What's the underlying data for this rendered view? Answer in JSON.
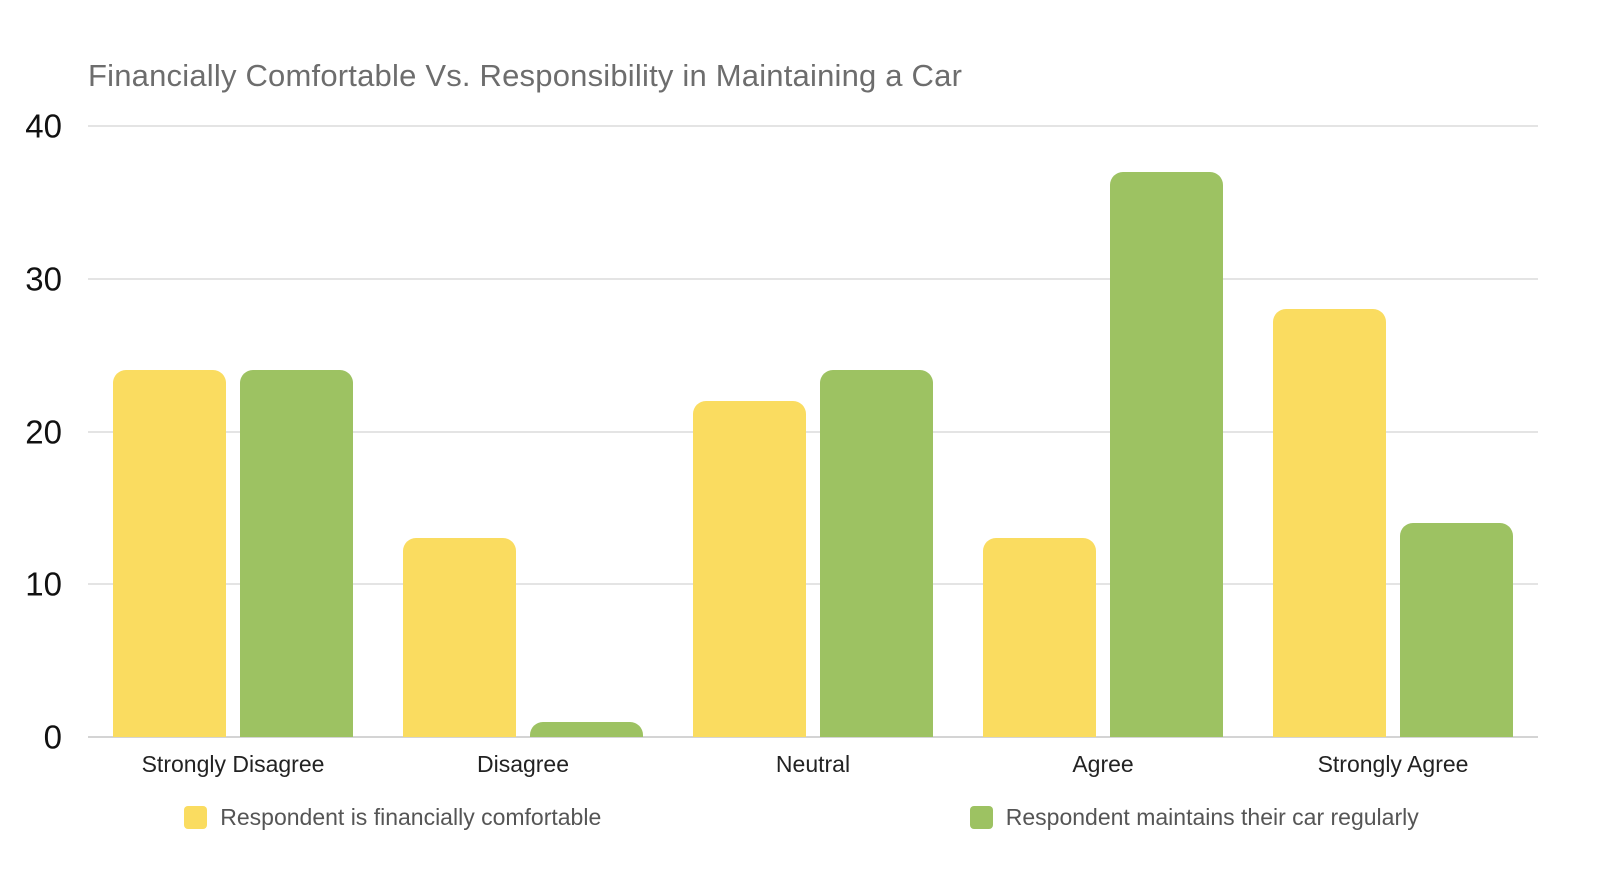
{
  "chart_data": {
    "type": "bar",
    "title": "Financially Comfortable Vs. Responsibility in Maintaining a Car",
    "categories": [
      "Strongly Disagree",
      "Disagree",
      "Neutral",
      "Agree",
      "Strongly Agree"
    ],
    "series": [
      {
        "name": "Respondent is financially comfortable",
        "color": "#FADC60",
        "values": [
          24,
          13,
          22,
          13,
          28
        ]
      },
      {
        "name": "Respondent maintains their car regularly",
        "color": "#9DC262",
        "values": [
          24,
          1,
          24,
          37,
          14
        ]
      }
    ],
    "xlabel": "",
    "ylabel": "",
    "ylim": [
      0,
      40
    ],
    "yticks": [
      0,
      10,
      20,
      30,
      40
    ],
    "grid": true,
    "legend_position": "bottom"
  }
}
